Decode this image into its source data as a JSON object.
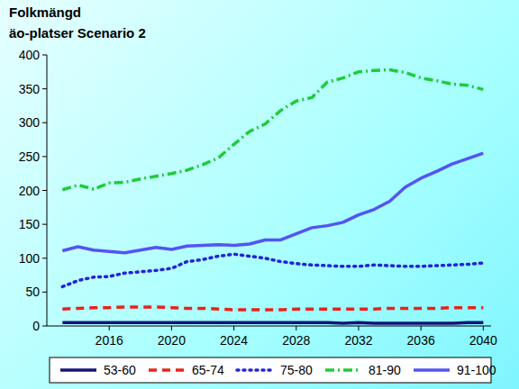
{
  "chart_data": {
    "type": "line",
    "title": "Folkmängd",
    "subtitle": "äo-platser Scenario 2",
    "x": [
      2013,
      2014,
      2015,
      2016,
      2017,
      2018,
      2019,
      2020,
      2021,
      2022,
      2023,
      2024,
      2025,
      2026,
      2027,
      2028,
      2029,
      2030,
      2031,
      2032,
      2033,
      2034,
      2035,
      2036,
      2037,
      2038,
      2039,
      2040
    ],
    "xlim": [
      2012,
      2040.5
    ],
    "xticks": [
      2016,
      2020,
      2024,
      2028,
      2032,
      2036,
      2040
    ],
    "ylim": [
      0,
      400
    ],
    "yticks": [
      0,
      50,
      100,
      150,
      200,
      250,
      300,
      350,
      400
    ],
    "grid": false,
    "legend": "bottom",
    "series": [
      {
        "name": "53-60",
        "color": "#14147a",
        "line_style": "solid",
        "values": [
          5,
          5,
          5,
          5,
          5,
          5,
          5,
          5,
          5,
          5,
          5,
          5,
          5,
          5,
          5,
          5,
          5,
          5,
          4,
          5,
          4,
          4,
          4,
          4,
          4,
          4,
          5,
          5
        ]
      },
      {
        "name": "65-74",
        "color": "#e8221b",
        "line_style": "dashed",
        "values": [
          25,
          26,
          27,
          27,
          28,
          28,
          28,
          27,
          26,
          26,
          25,
          24,
          24,
          24,
          24,
          25,
          25,
          25,
          25,
          25,
          25,
          26,
          26,
          26,
          26,
          27,
          27,
          27
        ]
      },
      {
        "name": "75-80",
        "color": "#2323d8",
        "line_style": "dotted",
        "values": [
          58,
          67,
          72,
          73,
          78,
          80,
          82,
          85,
          95,
          98,
          103,
          106,
          103,
          100,
          95,
          92,
          90,
          89,
          88,
          88,
          90,
          89,
          88,
          88,
          89,
          90,
          91,
          93
        ]
      },
      {
        "name": "81-90",
        "color": "#1fcc3a",
        "line_style": "dashdot",
        "values": [
          201,
          208,
          202,
          211,
          212,
          217,
          221,
          225,
          230,
          238,
          248,
          268,
          287,
          298,
          318,
          332,
          337,
          360,
          366,
          375,
          377,
          378,
          374,
          366,
          362,
          357,
          355,
          349
        ]
      },
      {
        "name": "91-100",
        "color": "#5454f2",
        "line_style": "solid",
        "values": [
          111,
          117,
          112,
          110,
          108,
          112,
          116,
          113,
          118,
          119,
          120,
          119,
          121,
          127,
          127,
          136,
          145,
          148,
          153,
          164,
          172,
          184,
          205,
          218,
          228,
          239,
          247,
          255
        ]
      }
    ]
  }
}
